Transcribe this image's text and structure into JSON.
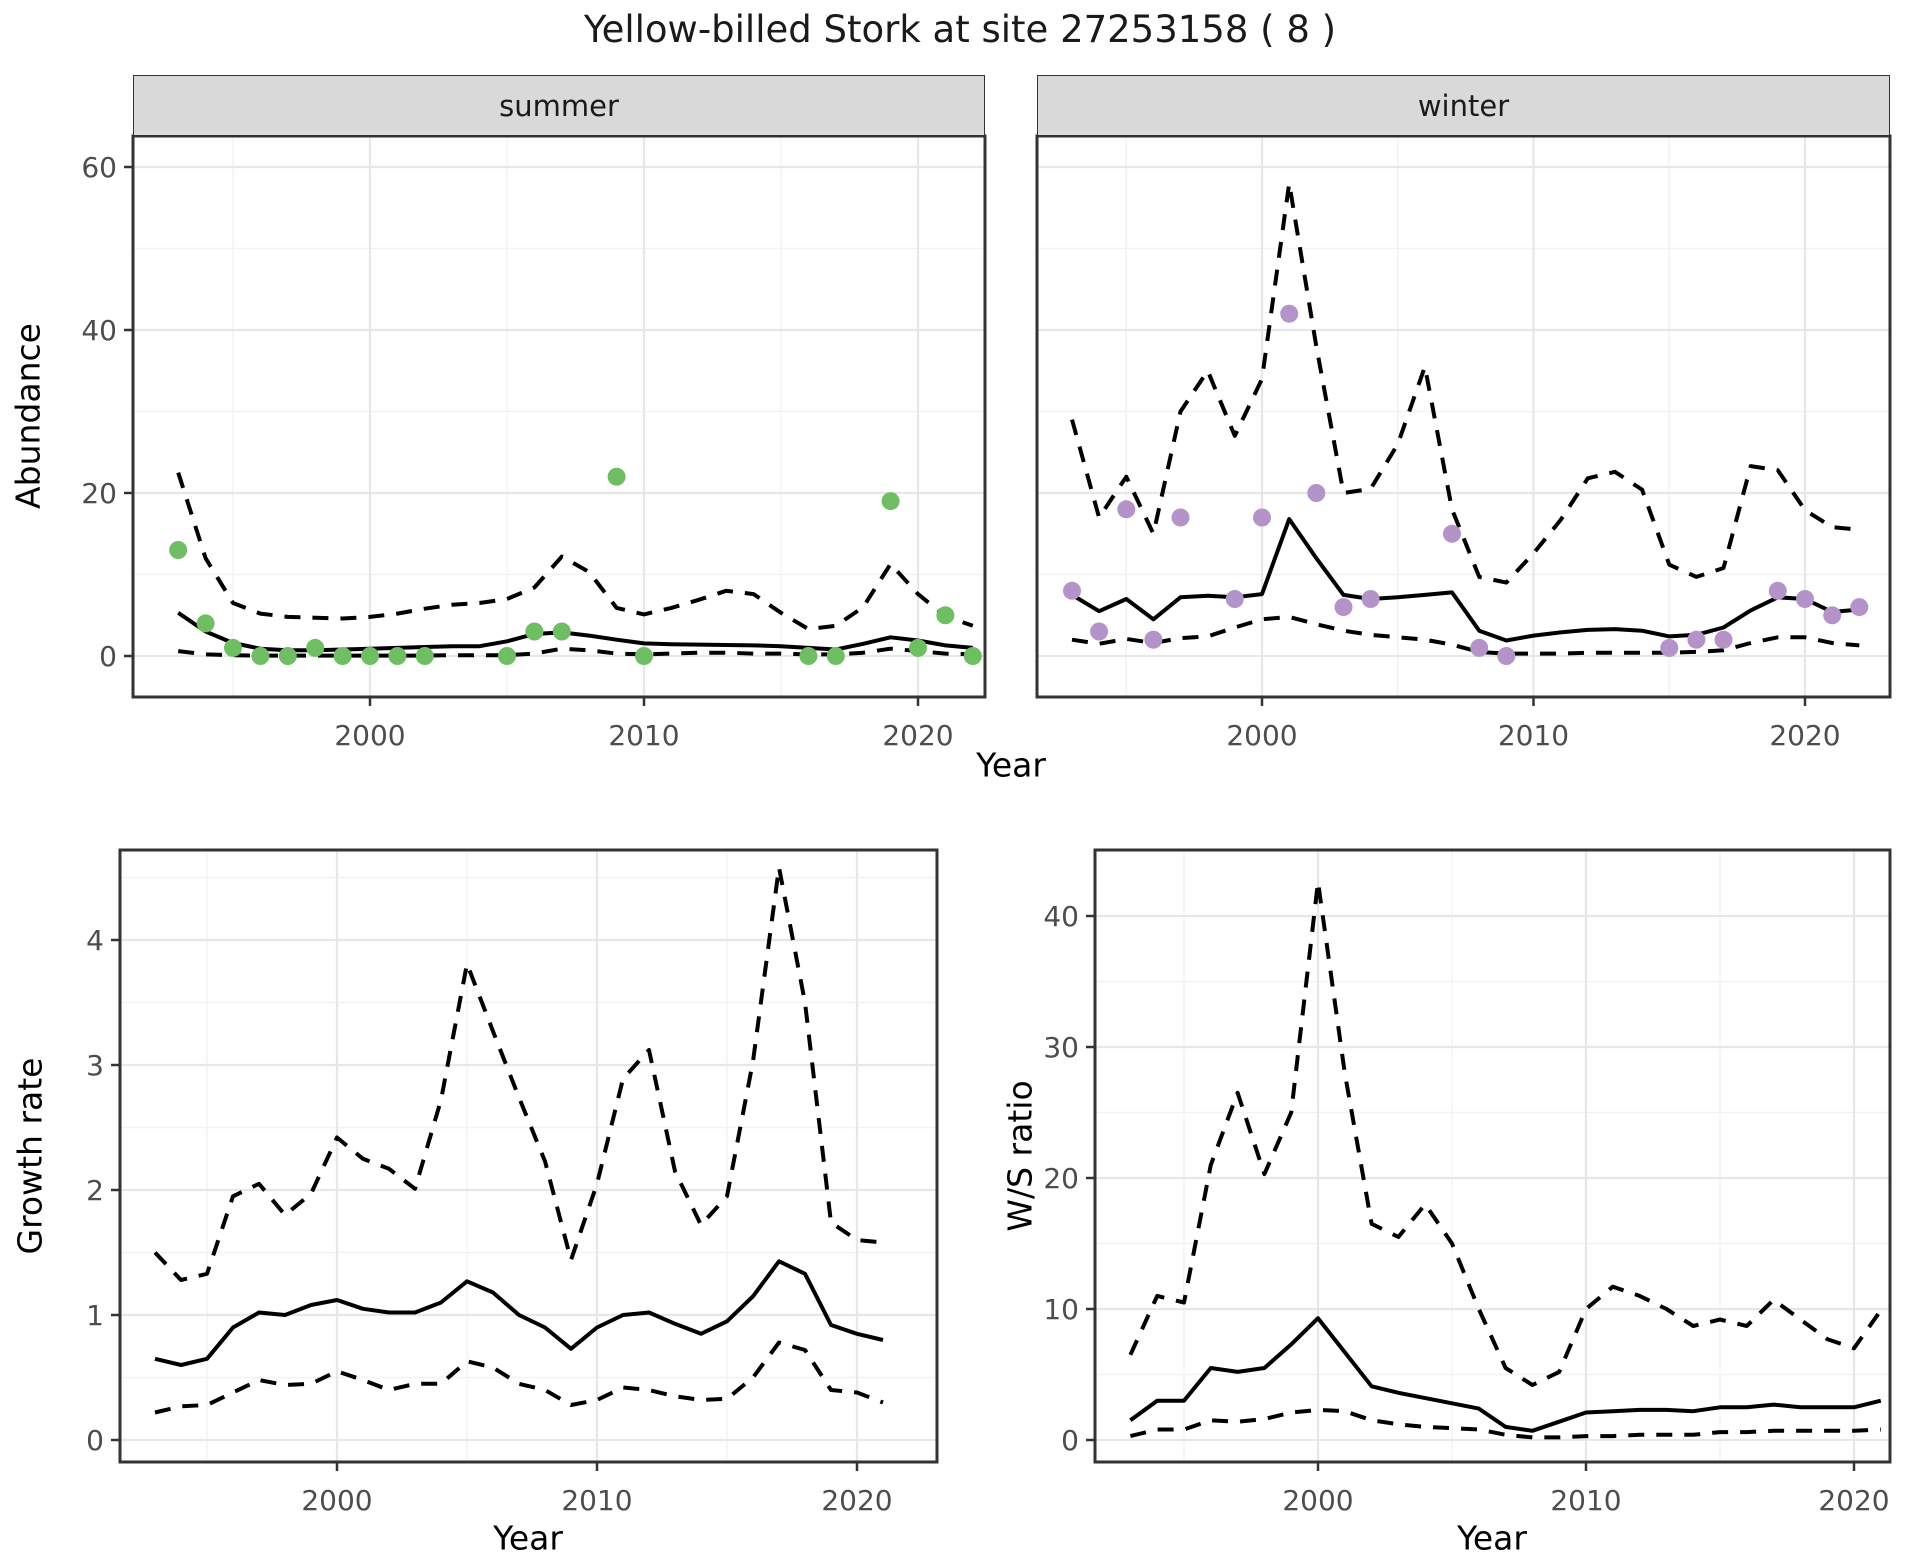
{
  "title": "Yellow-billed Stork at site 27253158 ( 8 )",
  "facets": {
    "summer": "summer",
    "winter": "winter"
  },
  "axis_labels": {
    "abundance": "Abundance",
    "year_top": "Year",
    "growth_rate": "Growth rate",
    "year_bottom_left": "Year",
    "ws_ratio": "W/S ratio",
    "year_bottom_right": "Year"
  },
  "colors": {
    "summer_point": "#6fbe63",
    "winter_point": "#b493c8",
    "line": "#000000",
    "strip_bg": "#d9d9d9",
    "panel_border": "#333333",
    "grid_major": "#e7e7e7",
    "grid_minor": "#f3f3f3",
    "tick_mark": "#333333",
    "tick_label": "#4d4d4d",
    "background": "#ffffff"
  },
  "chart_data": [
    {
      "type": "line",
      "panel": "summer",
      "facet_label": "summer",
      "title": "Abundance - summer",
      "xlabel": "Year",
      "ylabel": "Abundance",
      "xlim": [
        1991.4,
        2023.1
      ],
      "ylim": [
        -5,
        63.8
      ],
      "grid": true,
      "legend": "none",
      "xticks": [
        2000,
        2010,
        2020
      ],
      "yticks": [
        0,
        20,
        40,
        60
      ],
      "x": [
        1993,
        1994,
        1995,
        1996,
        1997,
        1998,
        1999,
        2000,
        2001,
        2002,
        2003,
        2004,
        2005,
        2006,
        2007,
        2008,
        2009,
        2010,
        2011,
        2012,
        2013,
        2014,
        2015,
        2016,
        2017,
        2018,
        2019,
        2020,
        2021,
        2022
      ],
      "series": [
        {
          "name": "mean",
          "style": "solid",
          "values": [
            5.3,
            3.0,
            1.6,
            0.9,
            0.7,
            0.7,
            0.8,
            0.9,
            1.0,
            1.1,
            1.2,
            1.2,
            1.8,
            2.7,
            2.9,
            2.5,
            2.0,
            1.55,
            1.45,
            1.4,
            1.35,
            1.3,
            1.2,
            1.0,
            0.8,
            1.5,
            2.3,
            1.9,
            1.3,
            1.0
          ]
        },
        {
          "name": "upper_ci",
          "style": "dashed",
          "values": [
            22.5,
            12,
            6.5,
            5.2,
            4.8,
            4.7,
            4.6,
            4.8,
            5.2,
            5.8,
            6.3,
            6.5,
            7.0,
            8.4,
            12.2,
            10.3,
            5.9,
            5.1,
            5.9,
            6.9,
            8.0,
            7.6,
            5.3,
            3.3,
            3.7,
            6.0,
            11.3,
            7.6,
            4.9,
            3.7
          ]
        },
        {
          "name": "lower_ci",
          "style": "dashed",
          "values": [
            0.6,
            0.2,
            0.1,
            0.05,
            0.05,
            0.05,
            0.05,
            0.05,
            0.05,
            0.05,
            0.1,
            0.1,
            0.1,
            0.3,
            0.9,
            0.7,
            0.3,
            0.2,
            0.3,
            0.4,
            0.4,
            0.3,
            0.3,
            0.2,
            0.2,
            0.4,
            0.9,
            0.6,
            0.3,
            0.2
          ]
        }
      ],
      "points": {
        "name": "observed_counts",
        "color_key": "summer_point",
        "x": [
          1993,
          1994,
          1995,
          1996,
          1997,
          1998,
          1999,
          2000,
          2001,
          2002,
          2005,
          2006,
          2007,
          2009,
          2010,
          2016,
          2017,
          2019,
          2020,
          2021,
          2022
        ],
        "y": [
          13,
          4,
          1,
          0,
          0,
          1,
          0,
          0,
          0,
          0,
          0,
          3,
          3,
          22,
          0,
          0,
          0,
          19,
          1,
          5,
          0
        ]
      }
    },
    {
      "type": "line",
      "panel": "winter",
      "facet_label": "winter",
      "title": "Abundance - winter",
      "xlabel": "Year",
      "ylabel": "Abundance",
      "xlim": [
        1991.4,
        2023.1
      ],
      "ylim": [
        -5,
        63.8
      ],
      "grid": true,
      "legend": "none",
      "xticks": [
        2000,
        2010,
        2020
      ],
      "yticks": [
        0,
        20,
        40,
        60
      ],
      "x": [
        1993,
        1994,
        1995,
        1996,
        1997,
        1998,
        1999,
        2000,
        2001,
        2002,
        2003,
        2004,
        2005,
        2006,
        2007,
        2008,
        2009,
        2010,
        2011,
        2012,
        2013,
        2014,
        2015,
        2016,
        2017,
        2018,
        2019,
        2020,
        2021,
        2022
      ],
      "series": [
        {
          "name": "mean",
          "style": "solid",
          "values": [
            7.5,
            5.5,
            7.0,
            4.5,
            7.2,
            7.4,
            7.2,
            7.6,
            16.8,
            12,
            7.5,
            7.0,
            7.2,
            7.5,
            7.8,
            3.1,
            1.9,
            2.5,
            2.9,
            3.2,
            3.3,
            3.1,
            2.4,
            2.6,
            3.5,
            5.6,
            7.2,
            7.0,
            5.4,
            5.7
          ]
        },
        {
          "name": "upper_ci",
          "style": "dashed",
          "values": [
            29,
            17,
            22,
            15,
            30,
            35,
            27,
            34,
            58,
            38,
            20,
            20.5,
            26,
            35.5,
            18,
            9.7,
            9,
            12.6,
            16.7,
            21.8,
            22.6,
            20.4,
            11.2,
            9.7,
            10.8,
            23.3,
            22.8,
            17.9,
            15.8,
            15.5
          ]
        },
        {
          "name": "lower_ci",
          "style": "dashed",
          "values": [
            2.0,
            1.5,
            2.1,
            1.6,
            2.2,
            2.4,
            3.5,
            4.5,
            4.8,
            3.9,
            3.1,
            2.6,
            2.3,
            2.0,
            1.4,
            0.5,
            0.3,
            0.3,
            0.3,
            0.4,
            0.4,
            0.4,
            0.4,
            0.5,
            0.7,
            1.6,
            2.3,
            2.3,
            1.6,
            1.3
          ]
        }
      ],
      "points": {
        "name": "observed_counts",
        "color_key": "winter_point",
        "x": [
          1993,
          1994,
          1995,
          1996,
          1997,
          1999,
          2000,
          2001,
          2002,
          2003,
          2004,
          2007,
          2008,
          2009,
          2015,
          2016,
          2017,
          2019,
          2020,
          2021,
          2022
        ],
        "y": [
          8,
          3,
          18,
          2,
          17,
          7,
          17,
          42,
          20,
          6,
          7,
          15,
          1,
          0,
          1,
          2,
          2,
          8,
          7,
          5,
          6
        ]
      }
    },
    {
      "type": "line",
      "panel": "growth",
      "title": "Growth rate",
      "xlabel": "Year",
      "ylabel": "Growth rate",
      "xlim": [
        1991.6,
        2023.1
      ],
      "ylim": [
        -0.18,
        4.72
      ],
      "grid": true,
      "legend": "none",
      "xticks": [
        2000,
        2010,
        2020
      ],
      "yticks": [
        0,
        1,
        2,
        3,
        4
      ],
      "x": [
        1993,
        1994,
        1995,
        1996,
        1997,
        1998,
        1999,
        2000,
        2001,
        2002,
        2003,
        2004,
        2005,
        2006,
        2007,
        2008,
        2009,
        2010,
        2011,
        2012,
        2013,
        2014,
        2015,
        2016,
        2017,
        2018,
        2019,
        2020,
        2021
      ],
      "series": [
        {
          "name": "mean",
          "style": "solid",
          "values": [
            0.65,
            0.6,
            0.65,
            0.9,
            1.02,
            1.0,
            1.08,
            1.12,
            1.05,
            1.02,
            1.02,
            1.1,
            1.27,
            1.18,
            1.0,
            0.9,
            0.73,
            0.9,
            1.0,
            1.02,
            0.93,
            0.85,
            0.95,
            1.15,
            1.43,
            1.33,
            0.92,
            0.85,
            0.8
          ]
        },
        {
          "name": "upper_ci",
          "style": "dashed",
          "values": [
            1.5,
            1.28,
            1.33,
            1.95,
            2.05,
            1.8,
            1.97,
            2.42,
            2.25,
            2.17,
            2.01,
            2.72,
            3.81,
            3.27,
            2.74,
            2.23,
            1.44,
            2.05,
            2.89,
            3.12,
            2.15,
            1.72,
            1.95,
            3.03,
            4.58,
            3.5,
            1.74,
            1.6,
            1.58
          ]
        },
        {
          "name": "lower_ci",
          "style": "dashed",
          "values": [
            0.22,
            0.27,
            0.28,
            0.38,
            0.48,
            0.44,
            0.45,
            0.55,
            0.48,
            0.4,
            0.45,
            0.45,
            0.63,
            0.58,
            0.45,
            0.4,
            0.28,
            0.32,
            0.42,
            0.4,
            0.35,
            0.32,
            0.33,
            0.5,
            0.78,
            0.72,
            0.4,
            0.38,
            0.3
          ]
        }
      ]
    },
    {
      "type": "line",
      "panel": "ws",
      "title": "W/S ratio",
      "xlabel": "Year",
      "ylabel": "W/S ratio",
      "xlim": [
        1991.7,
        2021.4
      ],
      "ylim": [
        -1.7,
        45
      ],
      "grid": true,
      "legend": "none",
      "xticks": [
        2000,
        2010,
        2020
      ],
      "yticks": [
        0,
        10,
        20,
        30,
        40
      ],
      "x": [
        1993,
        1994,
        1995,
        1996,
        1997,
        1998,
        1999,
        2000,
        2001,
        2002,
        2003,
        2004,
        2005,
        2006,
        2007,
        2008,
        2009,
        2010,
        2011,
        2012,
        2013,
        2014,
        2015,
        2016,
        2017,
        2018,
        2019,
        2020,
        2021
      ],
      "series": [
        {
          "name": "mean",
          "style": "solid",
          "values": [
            1.5,
            3.0,
            3.0,
            5.5,
            5.2,
            5.5,
            7.3,
            9.3,
            6.7,
            4.1,
            3.6,
            3.2,
            2.8,
            2.4,
            1.0,
            0.7,
            1.4,
            2.1,
            2.2,
            2.3,
            2.3,
            2.2,
            2.5,
            2.5,
            2.7,
            2.5,
            2.5,
            2.5,
            3.0
          ]
        },
        {
          "name": "upper_ci",
          "style": "dashed",
          "values": [
            6.5,
            11,
            10.5,
            21,
            26.5,
            20.3,
            25,
            42.6,
            28,
            16.5,
            15.5,
            18,
            15,
            10,
            5.5,
            4.2,
            5.2,
            10,
            11.7,
            11,
            10,
            8.7,
            9.2,
            8.7,
            10.7,
            9.2,
            7.7,
            7,
            9.9
          ]
        },
        {
          "name": "lower_ci",
          "style": "dashed",
          "values": [
            0.3,
            0.8,
            0.8,
            1.5,
            1.4,
            1.6,
            2.1,
            2.3,
            2.2,
            1.5,
            1.2,
            1.0,
            0.9,
            0.8,
            0.4,
            0.2,
            0.2,
            0.3,
            0.3,
            0.4,
            0.4,
            0.4,
            0.6,
            0.6,
            0.7,
            0.7,
            0.7,
            0.7,
            0.8
          ]
        }
      ]
    }
  ]
}
